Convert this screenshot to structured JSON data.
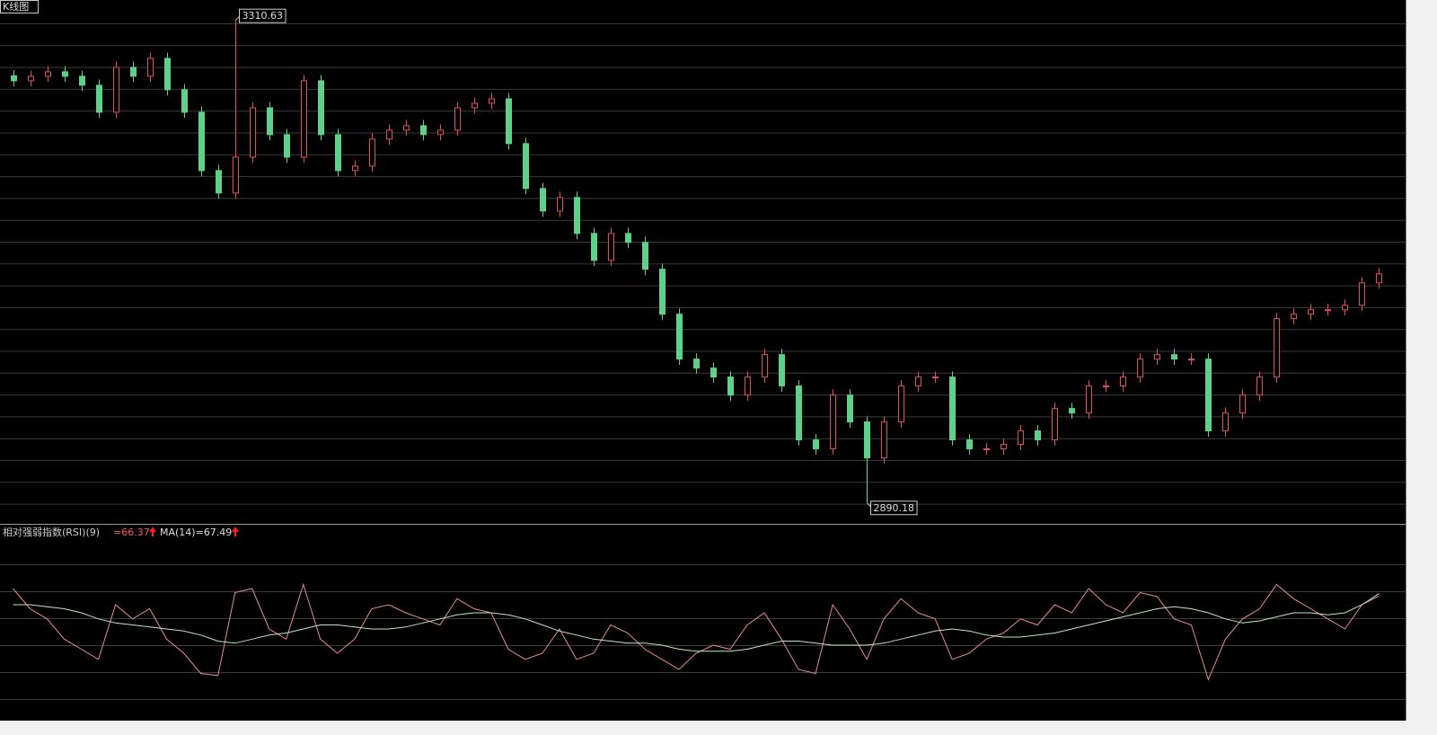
{
  "chart_data": [
    {
      "type": "candlestick",
      "title": "K线图",
      "ylim": [
        2872,
        3328
      ],
      "up_color": "#e0505a",
      "down_color": "#5fd08a",
      "open": [
        3262.0,
        3257.7,
        3261.6,
        3265.5,
        3261.6,
        3253.8,
        3230.3,
        3269.4,
        3261.6,
        3277.2,
        3249.9,
        3230.3,
        3179.5,
        3160.0,
        3191.2,
        3234.2,
        3210.8,
        3191.2,
        3257.7,
        3210.8,
        3179.5,
        3183.4,
        3206.9,
        3214.7,
        3218.6,
        3210.8,
        3214.7,
        3234.2,
        3238.1,
        3242.0,
        3203.0,
        3163.9,
        3144.3,
        3156.1,
        3124.8,
        3101.4,
        3124.8,
        3117.0,
        3093.6,
        3054.5,
        3015.4,
        3007.6,
        2999.8,
        2984.1,
        2999.8,
        3019.3,
        2992.0,
        2945.1,
        2937.3,
        2984.1,
        2960.7,
        2929.4,
        2960.7,
        2992.0,
        2999.8,
        2999.8,
        2945.1,
        2937.3,
        2937.3,
        2941.2,
        2952.9,
        2945.1,
        2972.4,
        2968.5,
        2992.0,
        2992.0,
        2999.8,
        3015.4,
        3019.3,
        3015.4,
        3015.4,
        2952.9,
        2968.5,
        2984.1,
        2999.8,
        3050.6,
        3054.5,
        3058.4,
        3058.4,
        3062.3,
        3081.8
      ],
      "high": [
        3267.0,
        3266.6,
        3270.5,
        3270.5,
        3266.6,
        3258.8,
        3274.4,
        3274.4,
        3282.2,
        3282.2,
        3254.9,
        3235.3,
        3184.5,
        3310.63,
        3239.2,
        3239.2,
        3215.8,
        3262.7,
        3262.7,
        3215.8,
        3188.4,
        3211.9,
        3219.7,
        3223.6,
        3223.6,
        3219.7,
        3239.2,
        3243.1,
        3247.0,
        3247.0,
        3208.0,
        3168.9,
        3161.1,
        3161.1,
        3129.8,
        3129.8,
        3129.8,
        3122.0,
        3098.6,
        3059.5,
        3020.4,
        3012.6,
        3004.8,
        3004.8,
        3024.3,
        3024.3,
        2997.0,
        2950.1,
        2989.1,
        2989.1,
        2965.7,
        2965.7,
        2997.0,
        3004.8,
        3004.8,
        3004.8,
        2950.1,
        2942.3,
        2946.2,
        2957.9,
        2957.9,
        2977.4,
        2977.4,
        2997.0,
        2997.0,
        3004.8,
        3020.4,
        3024.3,
        3024.3,
        3020.4,
        3020.4,
        2973.5,
        2989.1,
        3004.8,
        3055.6,
        3059.5,
        3063.4,
        3063.4,
        3067.3,
        3086.8,
        3094.6
      ],
      "low": [
        3252.7,
        3252.7,
        3256.6,
        3256.6,
        3248.8,
        3225.3,
        3225.3,
        3256.6,
        3256.6,
        3244.9,
        3225.3,
        3174.5,
        3155.0,
        3155.0,
        3186.2,
        3205.8,
        3186.2,
        3186.2,
        3205.8,
        3174.5,
        3174.5,
        3178.4,
        3201.9,
        3209.7,
        3205.8,
        3205.8,
        3209.7,
        3229.2,
        3233.1,
        3198.0,
        3158.9,
        3139.3,
        3139.3,
        3119.8,
        3096.4,
        3096.4,
        3112.0,
        3088.6,
        3049.5,
        3010.4,
        3002.6,
        2994.8,
        2979.1,
        2979.1,
        2994.8,
        2987.0,
        2940.1,
        2932.3,
        2932.3,
        2955.7,
        2890.18,
        2924.4,
        2955.7,
        2987.0,
        2994.8,
        2940.1,
        2932.3,
        2932.3,
        2932.3,
        2936.2,
        2940.1,
        2940.1,
        2963.5,
        2963.5,
        2987.0,
        2987.0,
        2994.8,
        3010.4,
        3010.4,
        3010.4,
        2947.9,
        2947.9,
        2963.5,
        2979.1,
        2994.8,
        3045.6,
        3049.5,
        3053.4,
        3053.4,
        3057.3,
        3076.8
      ],
      "close": [
        3257.7,
        3261.6,
        3265.5,
        3261.6,
        3253.8,
        3230.3,
        3269.4,
        3261.6,
        3277.2,
        3249.9,
        3230.3,
        3179.5,
        3160.0,
        3191.2,
        3234.2,
        3210.8,
        3191.2,
        3257.7,
        3210.8,
        3179.5,
        3183.4,
        3206.9,
        3214.7,
        3218.6,
        3210.8,
        3214.7,
        3234.2,
        3238.1,
        3242.0,
        3203.0,
        3163.9,
        3144.3,
        3156.1,
        3124.8,
        3101.4,
        3124.8,
        3117.0,
        3093.6,
        3054.5,
        3015.4,
        3007.6,
        2999.8,
        2984.1,
        2999.8,
        3019.3,
        2992.0,
        2945.1,
        2937.3,
        2984.1,
        2960.7,
        2929.4,
        2960.7,
        2992.0,
        2999.8,
        2999.8,
        2945.1,
        2937.3,
        2937.3,
        2941.2,
        2952.9,
        2945.1,
        2972.4,
        2968.5,
        2992.0,
        2992.0,
        2999.8,
        3015.4,
        3019.3,
        3015.4,
        3015.4,
        2952.9,
        2968.5,
        2984.1,
        2999.8,
        3050.6,
        3054.5,
        3058.4,
        3058.4,
        3062.3,
        3081.8,
        3089.6
      ],
      "annotations": [
        {
          "value": 3310.63,
          "label": "3310.63"
        },
        {
          "value": 2890.18,
          "label": "2890.18"
        }
      ]
    },
    {
      "type": "line",
      "title": "相对强弱指数(RSI)(9)",
      "value_label": "=66.37",
      "ma_label": "MA(14)=67.49",
      "ylim": [
        10,
        90
      ],
      "series": [
        {
          "color": "#e88a94",
          "values": [
            70,
            60,
            55,
            45,
            40,
            35,
            62,
            55,
            60,
            45,
            38,
            28,
            27,
            68,
            70,
            50,
            45,
            72,
            45,
            38,
            45,
            60,
            62,
            58,
            55,
            52,
            65,
            60,
            58,
            40,
            35,
            38,
            50,
            35,
            38,
            52,
            48,
            40,
            35,
            30,
            38,
            42,
            40,
            52,
            58,
            45,
            30,
            28,
            62,
            50,
            35,
            55,
            65,
            58,
            55,
            35,
            38,
            45,
            48,
            55,
            52,
            62,
            58,
            70,
            62,
            58,
            68,
            66,
            55,
            52,
            25,
            45,
            55,
            60,
            72,
            65,
            60,
            55,
            50,
            62,
            66.37
          ]
        },
        {
          "color": "#bfe8c0",
          "values": [
            62,
            62,
            61,
            60,
            58,
            55,
            53,
            52,
            51,
            50,
            49,
            47,
            44,
            43,
            45,
            47,
            48,
            50,
            52,
            52,
            51,
            50,
            50,
            51,
            53,
            55,
            57,
            58,
            58,
            57,
            55,
            52,
            49,
            47,
            45,
            44,
            43,
            43,
            42,
            40,
            39,
            39,
            39,
            40,
            42,
            44,
            44,
            43,
            42,
            42,
            42,
            43,
            45,
            47,
            49,
            50,
            49,
            47,
            46,
            46,
            47,
            48,
            50,
            52,
            54,
            56,
            58,
            60,
            61,
            60,
            58,
            55,
            53,
            54,
            56,
            58,
            58,
            57,
            58,
            62,
            67.49
          ]
        }
      ]
    }
  ]
}
